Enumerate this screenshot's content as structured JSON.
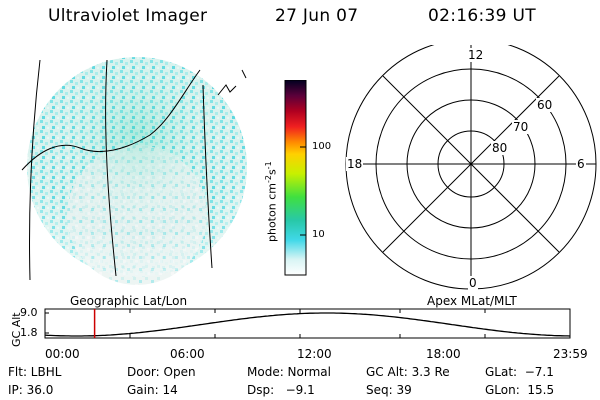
{
  "header": {
    "instrument": "Ultraviolet Imager",
    "date": "27 Jun 07",
    "time": "02:16:39 UT"
  },
  "colorbar": {
    "unit": "photon cm",
    "unit_exp1": "-2",
    "unit_mid": "s",
    "unit_exp2": "-1",
    "tick_100": "100",
    "tick_10": "10"
  },
  "polar_plot": {
    "label_top": "12",
    "label_left": "18",
    "label_right": "6",
    "label_bottom": "0",
    "ring_60": "60",
    "ring_70": "70",
    "ring_80": "80"
  },
  "projection_labels": {
    "left": "Geographic Lat/Lon",
    "right": "Apex MLat/MLT"
  },
  "altitude_plot": {
    "ylabel": "GC Alt",
    "ytick_high": "9.0",
    "ytick_low": "1.8",
    "xticks": [
      "00:00",
      "06:00",
      "12:00",
      "18:00",
      "23:59"
    ],
    "marker_time": "02:16"
  },
  "info": {
    "row1": {
      "flt": "Flt: LBHL",
      "door": "Door: Open",
      "mode": "Mode: Normal",
      "gcalt": "GC Alt: 3.3 Re",
      "glat": "GLat:  −7.1"
    },
    "row2": {
      "ip": "IP: 36.0",
      "gain": "Gain: 14",
      "dsp": "Dsp:   −9.1",
      "seq": "Seq: 39",
      "glon": "GLon:  15.5"
    }
  },
  "colors": {
    "accent_marker": "#cc0000",
    "grid_line": "#000000"
  }
}
